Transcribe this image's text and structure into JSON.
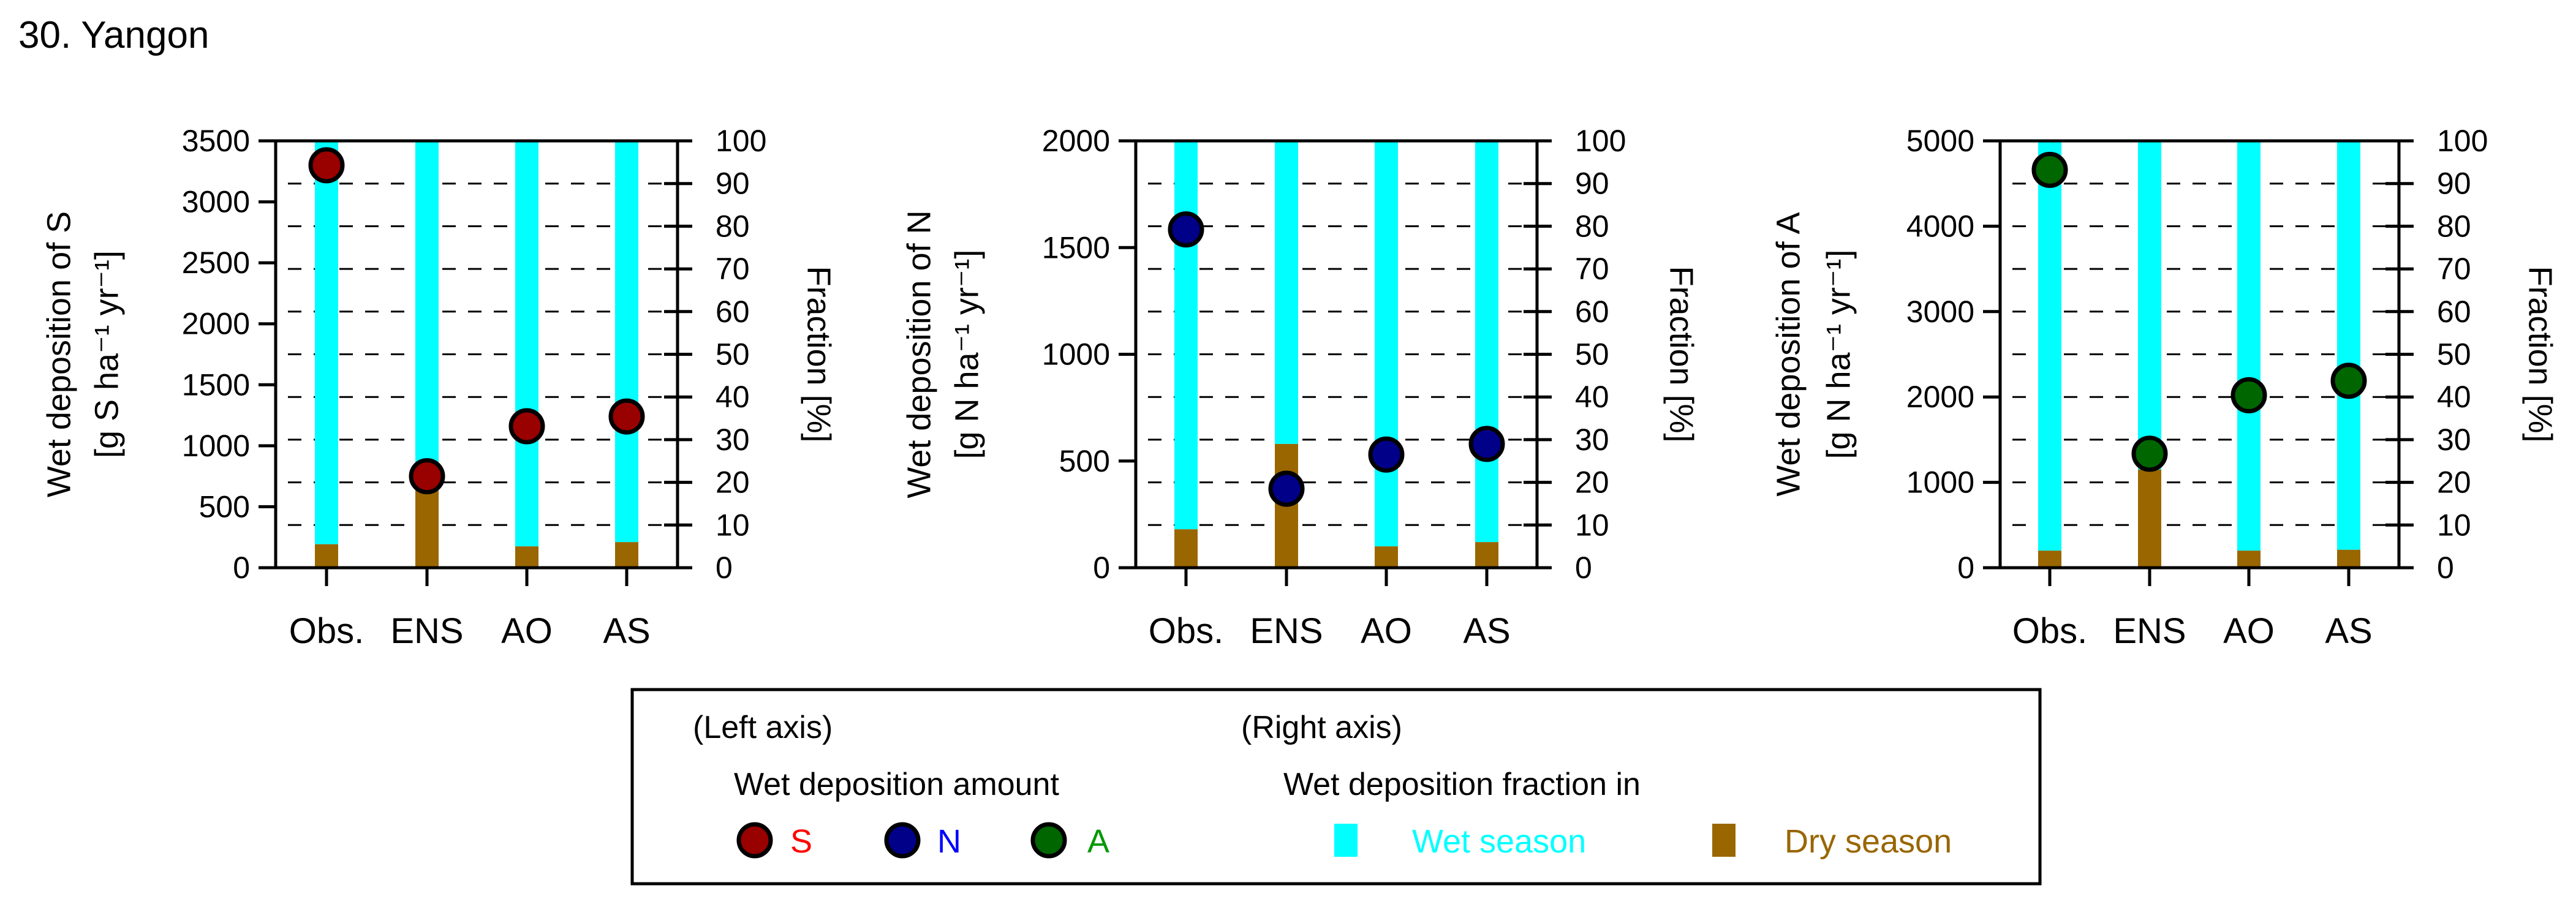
{
  "page_title": "30. Yangon",
  "chart_data": [
    {
      "type": "bar+scatter",
      "name": "sulfur",
      "categories": [
        "Obs.",
        "ENS",
        "AO",
        "AS"
      ],
      "ylabel": "Wet deposition of S",
      "ylabel_unit": "[g S ha⁻¹ yr⁻¹]",
      "y2label": "Fraction [%]",
      "ylim": [
        0,
        3500
      ],
      "yticks": [
        0,
        500,
        1000,
        1500,
        2000,
        2500,
        3000,
        3500
      ],
      "y2lim": [
        0,
        100
      ],
      "y2ticks": [
        0,
        10,
        20,
        30,
        40,
        50,
        60,
        70,
        80,
        90,
        100
      ],
      "grid": "dashed at right-axis ticks",
      "wet_deposition_amount": [
        3300,
        750,
        1160,
        1240
      ],
      "dry_season_fraction": [
        5.5,
        19,
        5,
        6
      ],
      "wet_season_fraction": [
        94.5,
        81,
        95,
        94
      ],
      "marker_color": "#990000"
    },
    {
      "type": "bar+scatter",
      "name": "nitrogen",
      "categories": [
        "Obs.",
        "ENS",
        "AO",
        "AS"
      ],
      "ylabel": "Wet deposition of N",
      "ylabel_unit": "[g N ha⁻¹ yr⁻¹]",
      "y2label": "Fraction [%]",
      "ylim": [
        0,
        2000
      ],
      "yticks": [
        0,
        500,
        1000,
        1500,
        2000
      ],
      "y2lim": [
        0,
        100
      ],
      "y2ticks": [
        0,
        10,
        20,
        30,
        40,
        50,
        60,
        70,
        80,
        90,
        100
      ],
      "grid": "dashed at right-axis ticks",
      "wet_deposition_amount": [
        1585,
        370,
        530,
        580
      ],
      "dry_season_fraction": [
        9,
        29,
        5,
        6
      ],
      "wet_season_fraction": [
        91,
        71,
        95,
        94
      ],
      "marker_color": "#000088"
    },
    {
      "type": "bar+scatter",
      "name": "ammonium",
      "categories": [
        "Obs.",
        "ENS",
        "AO",
        "AS"
      ],
      "ylabel": "Wet deposition of A",
      "ylabel_unit": "[g N ha⁻¹ yr⁻¹]",
      "y2label": "Fraction [%]",
      "ylim": [
        0,
        5000
      ],
      "yticks": [
        0,
        1000,
        2000,
        3000,
        4000,
        5000
      ],
      "y2lim": [
        0,
        100
      ],
      "y2ticks": [
        0,
        10,
        20,
        30,
        40,
        50,
        60,
        70,
        80,
        90,
        100
      ],
      "grid": "dashed at right-axis ticks",
      "wet_deposition_amount": [
        4660,
        1335,
        2020,
        2190
      ],
      "dry_season_fraction": [
        4,
        23,
        4,
        4.2
      ],
      "wet_season_fraction": [
        96,
        77,
        96,
        95.8
      ],
      "marker_color": "#006600"
    }
  ],
  "legend": {
    "left_header": "(Left axis)",
    "right_header": "(Right axis)",
    "left_title": "Wet deposition amount",
    "right_title": "Wet deposition fraction in",
    "markers": [
      {
        "label": "S",
        "fill": "#990000",
        "text_color": "#ff0000"
      },
      {
        "label": "N",
        "fill": "#000088",
        "text_color": "#0000ff"
      },
      {
        "label": "A",
        "fill": "#006600",
        "text_color": "#009900"
      }
    ],
    "bars": [
      {
        "label": "Wet season",
        "color": "#00ffff"
      },
      {
        "label": "Dry season",
        "color": "#996600"
      }
    ]
  }
}
